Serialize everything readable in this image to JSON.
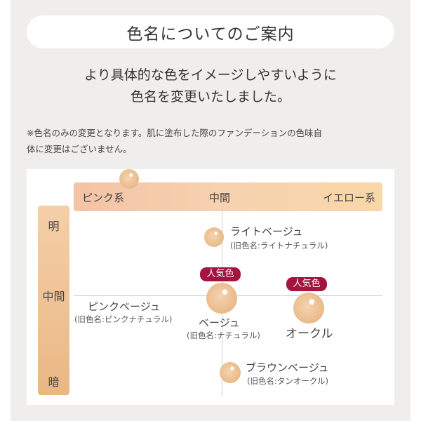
{
  "title": "色名についてのご案内",
  "lead": [
    "より具体的な色をイメージしやすいように",
    "色名を変更いたしました。"
  ],
  "note": [
    "※色名のみの変更となります。肌に塗布した際のファンデーションの色味自",
    "体に変更はございません。"
  ],
  "chart": {
    "x_axis": {
      "left": "ピンク系",
      "center": "中間",
      "right": "イエロー系"
    },
    "y_axis": {
      "top": "明",
      "center": "中間",
      "bottom": "暗"
    },
    "badge": "人気色",
    "colors": {
      "badge": "#a3153f",
      "axis_bar": "#f3c3a5"
    },
    "shades": [
      {
        "name": "ライトベージュ",
        "old": "(旧色名:ライトナチュラル)",
        "popular": false
      },
      {
        "name": "ピンクベージュ",
        "old": "(旧色名:ピンクナチュラル)",
        "popular": false
      },
      {
        "name": "ベージュ",
        "old": "(旧色名:ナチュラル)",
        "popular": true
      },
      {
        "name": "オークル",
        "old": "",
        "popular": true
      },
      {
        "name": "ブラウンベージュ",
        "old": "(旧色名:タンオークル)",
        "popular": false
      }
    ]
  }
}
